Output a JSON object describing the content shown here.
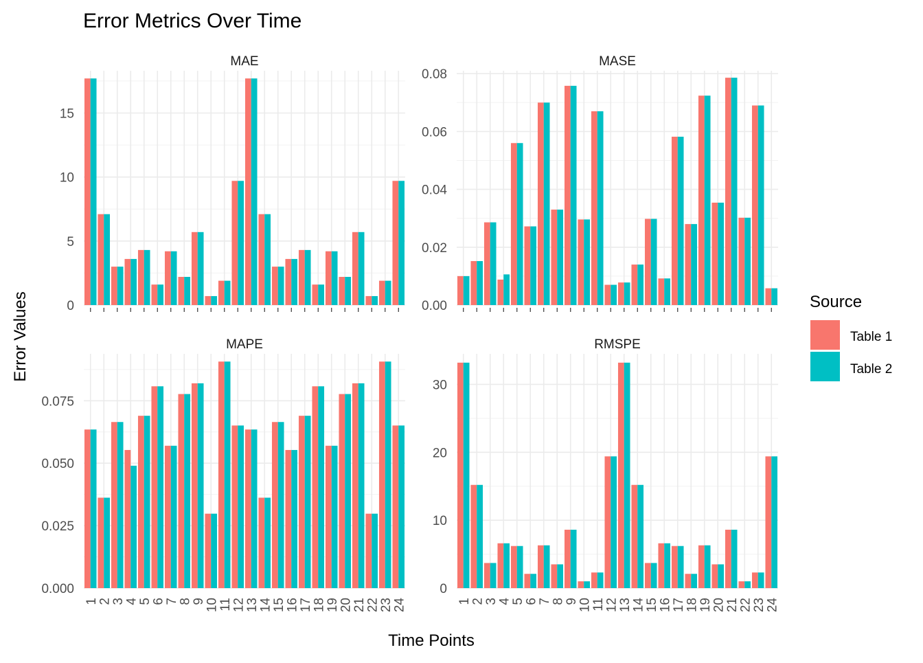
{
  "title": "Error Metrics Over Time",
  "xlabel": "Time Points",
  "ylabel": "Error Values",
  "legend": {
    "title": "Source",
    "placement": "right",
    "entries": [
      {
        "name": "Table 1",
        "color": "#F8766D"
      },
      {
        "name": "Table 2",
        "color": "#00BFC4"
      }
    ]
  },
  "chart_data": [
    {
      "type": "bar",
      "panel": "MAE",
      "categories": [
        "1",
        "2",
        "3",
        "4",
        "5",
        "6",
        "7",
        "8",
        "9",
        "10",
        "11",
        "12",
        "13",
        "14",
        "15",
        "16",
        "17",
        "18",
        "19",
        "20",
        "21",
        "22",
        "23",
        "24"
      ],
      "series": [
        {
          "name": "Table 1",
          "values": [
            17.7,
            7.1,
            3.0,
            3.6,
            4.3,
            1.6,
            4.2,
            2.2,
            5.7,
            0.7,
            1.9,
            9.7,
            17.7,
            7.1,
            3.0,
            3.6,
            4.3,
            1.6,
            4.2,
            2.2,
            5.7,
            0.7,
            1.9,
            9.7
          ]
        },
        {
          "name": "Table 2",
          "values": [
            17.7,
            7.1,
            3.0,
            3.6,
            4.3,
            1.6,
            4.2,
            2.2,
            5.7,
            0.7,
            1.9,
            9.7,
            17.7,
            7.1,
            3.0,
            3.6,
            4.3,
            1.6,
            4.2,
            2.2,
            5.7,
            0.7,
            1.9,
            9.7
          ]
        }
      ],
      "ylim": [
        0,
        18.3
      ],
      "yticks": [
        0,
        5,
        10,
        15
      ],
      "ytick_labels": [
        "0",
        "5",
        "10",
        "15"
      ],
      "grid": true
    },
    {
      "type": "bar",
      "panel": "MASE",
      "categories": [
        "1",
        "2",
        "3",
        "4",
        "5",
        "6",
        "7",
        "8",
        "9",
        "10",
        "11",
        "12",
        "13",
        "14",
        "15",
        "16",
        "17",
        "18",
        "19",
        "20",
        "21",
        "22",
        "23",
        "24"
      ],
      "series": [
        {
          "name": "Table 1",
          "values": [
            0.01,
            0.0152,
            0.0286,
            0.0088,
            0.056,
            0.0272,
            0.07,
            0.033,
            0.0758,
            0.0296,
            0.067,
            0.007,
            0.0078,
            0.014,
            0.0298,
            0.0092,
            0.0582,
            0.028,
            0.0724,
            0.0354,
            0.0786,
            0.0302,
            0.069,
            0.0058
          ]
        },
        {
          "name": "Table 2",
          "values": [
            0.01,
            0.0152,
            0.0286,
            0.0106,
            0.056,
            0.0272,
            0.07,
            0.033,
            0.0758,
            0.0296,
            0.067,
            0.007,
            0.0078,
            0.014,
            0.0298,
            0.0092,
            0.0582,
            0.028,
            0.0724,
            0.0354,
            0.0786,
            0.0302,
            0.069,
            0.0058
          ]
        }
      ],
      "ylim": [
        0,
        0.081
      ],
      "yticks": [
        0,
        0.02,
        0.04,
        0.06,
        0.08
      ],
      "ytick_labels": [
        "0.00",
        "0.02",
        "0.04",
        "0.06",
        "0.08"
      ],
      "grid": true
    },
    {
      "type": "bar",
      "panel": "MAPE",
      "categories": [
        "1",
        "2",
        "3",
        "4",
        "5",
        "6",
        "7",
        "8",
        "9",
        "10",
        "11",
        "12",
        "13",
        "14",
        "15",
        "16",
        "17",
        "18",
        "19",
        "20",
        "21",
        "22",
        "23",
        "24"
      ],
      "series": [
        {
          "name": "Table 1",
          "values": [
            0.0635,
            0.0362,
            0.0665,
            0.0553,
            0.069,
            0.0808,
            0.057,
            0.0777,
            0.082,
            0.0298,
            0.0907,
            0.0651,
            0.0635,
            0.0362,
            0.0665,
            0.0553,
            0.069,
            0.0808,
            0.057,
            0.0777,
            0.082,
            0.0298,
            0.0907,
            0.0651
          ]
        },
        {
          "name": "Table 2",
          "values": [
            0.0635,
            0.0362,
            0.0665,
            0.049,
            0.069,
            0.0808,
            0.057,
            0.0777,
            0.082,
            0.0298,
            0.0907,
            0.0651,
            0.0635,
            0.0362,
            0.0665,
            0.0553,
            0.069,
            0.0808,
            0.057,
            0.0777,
            0.082,
            0.0298,
            0.0907,
            0.0651
          ]
        }
      ],
      "ylim": [
        0,
        0.0938
      ],
      "yticks": [
        0,
        0.025,
        0.05,
        0.075
      ],
      "ytick_labels": [
        "0.000",
        "0.025",
        "0.050",
        "0.075"
      ],
      "grid": true
    },
    {
      "type": "bar",
      "panel": "RMSPE",
      "categories": [
        "1",
        "2",
        "3",
        "4",
        "5",
        "6",
        "7",
        "8",
        "9",
        "10",
        "11",
        "12",
        "13",
        "14",
        "15",
        "16",
        "17",
        "18",
        "19",
        "20",
        "21",
        "22",
        "23",
        "24"
      ],
      "series": [
        {
          "name": "Table 1",
          "values": [
            33.2,
            15.2,
            3.7,
            6.6,
            6.2,
            2.1,
            6.3,
            3.5,
            8.6,
            1.0,
            2.3,
            19.4,
            33.2,
            15.2,
            3.7,
            6.6,
            6.2,
            2.1,
            6.3,
            3.5,
            8.6,
            1.0,
            2.3,
            19.4
          ]
        },
        {
          "name": "Table 2",
          "values": [
            33.2,
            15.2,
            3.7,
            6.6,
            6.2,
            2.1,
            6.3,
            3.5,
            8.6,
            1.0,
            2.3,
            19.4,
            33.2,
            15.2,
            3.7,
            6.6,
            6.2,
            2.1,
            6.3,
            3.5,
            8.6,
            1.0,
            2.3,
            19.4
          ]
        }
      ],
      "ylim": [
        0,
        34.5
      ],
      "yticks": [
        0,
        10,
        20,
        30
      ],
      "ytick_labels": [
        "0",
        "10",
        "20",
        "30"
      ],
      "grid": true
    }
  ]
}
